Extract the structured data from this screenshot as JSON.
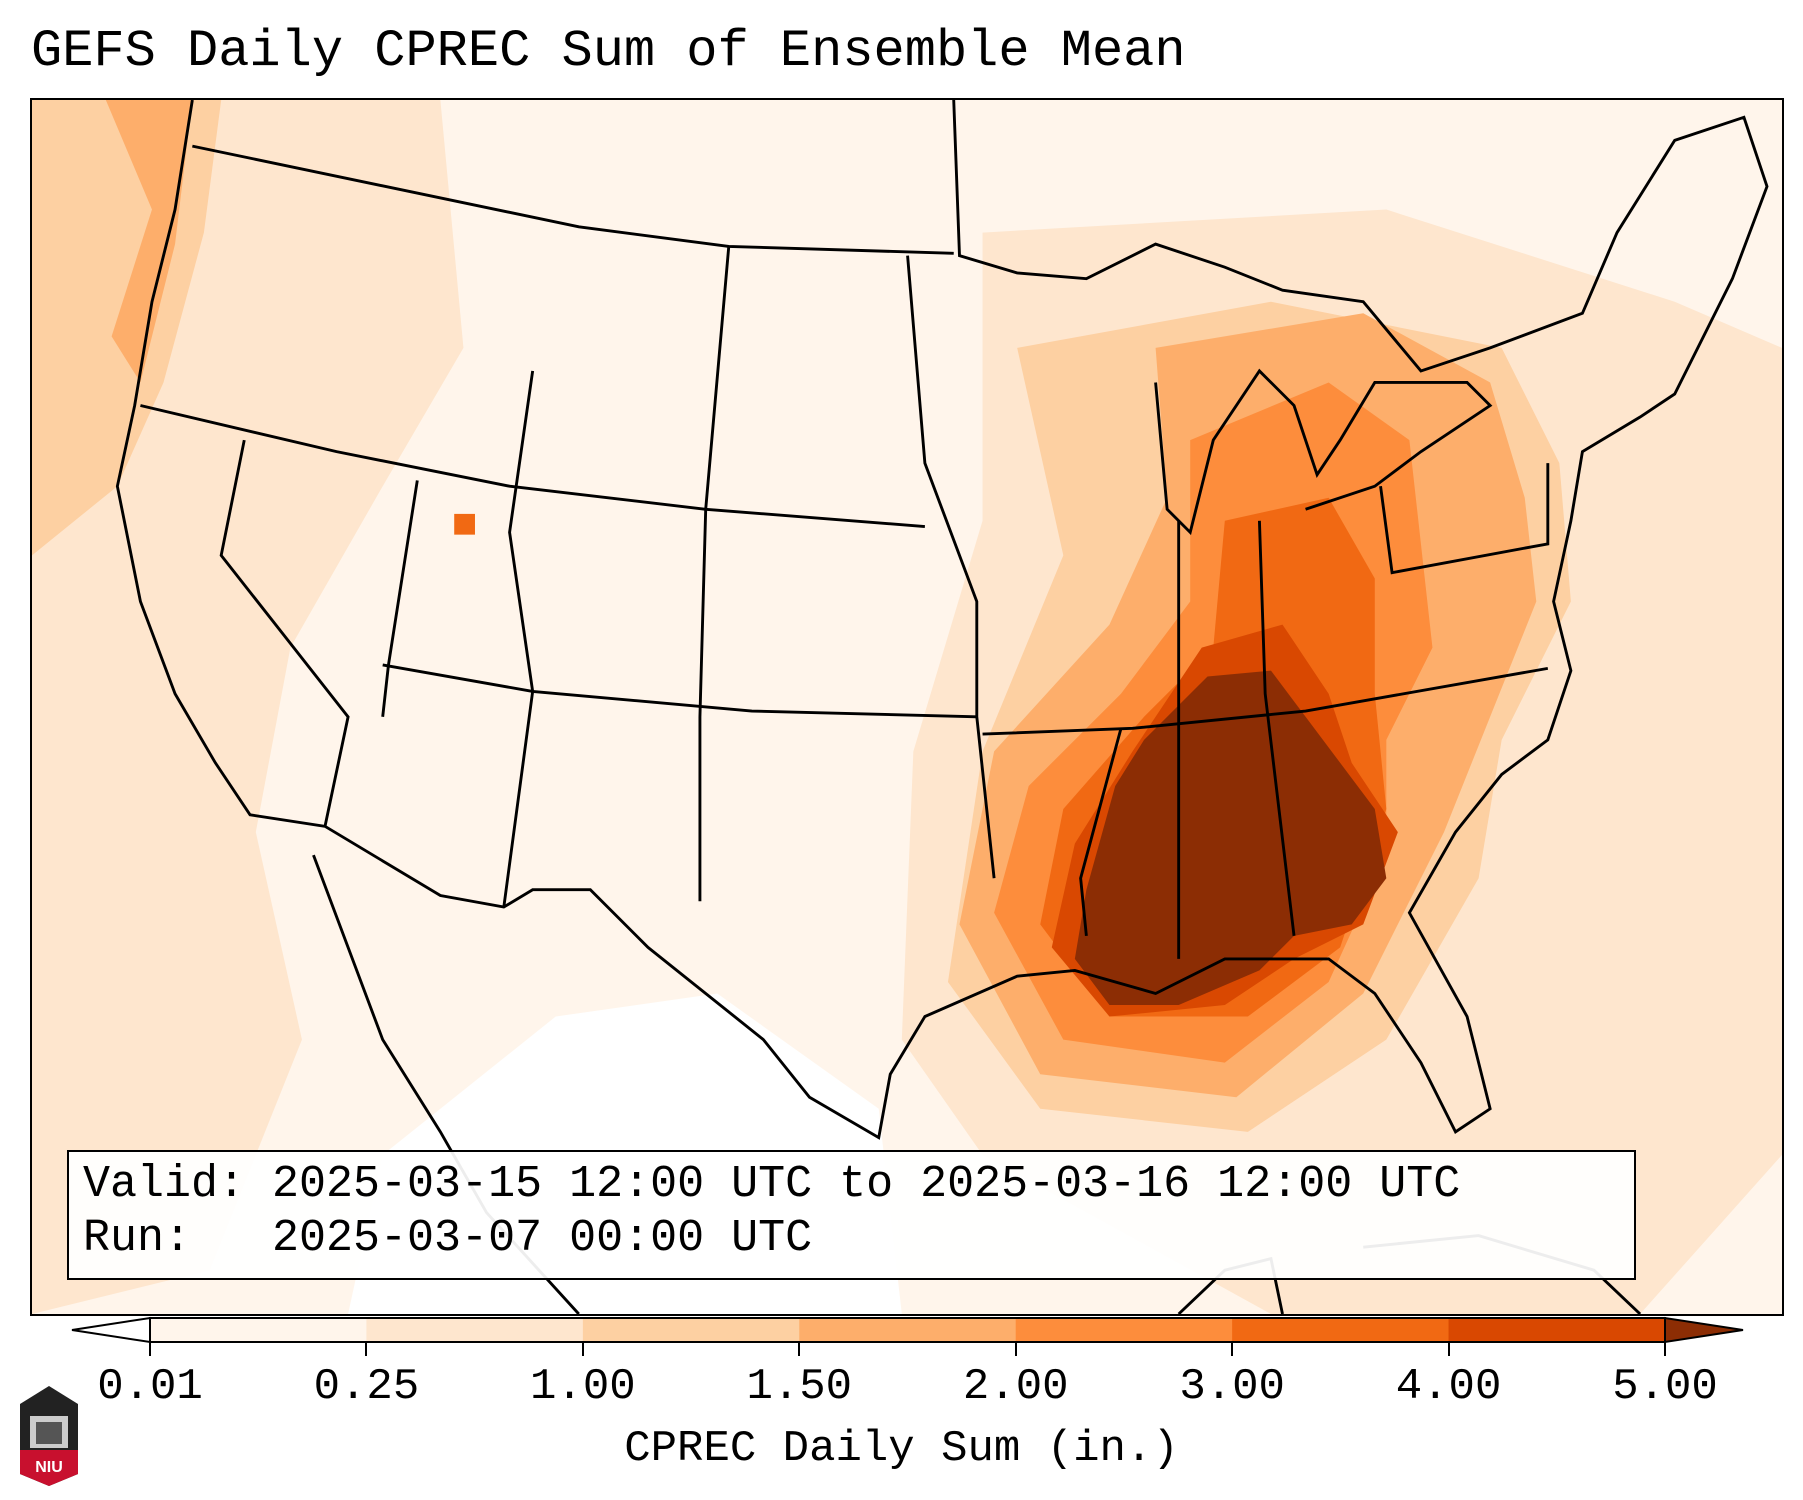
{
  "title": "GEFS Daily CPREC Sum of Ensemble Mean",
  "info": {
    "valid_line": "Valid: 2025-03-15 12:00 UTC to 2025-03-16 12:00 UTC",
    "run_line": "Run:   2025-03-07 00:00 UTC"
  },
  "colorbar": {
    "label": "CPREC Daily Sum (in.)",
    "ticks": [
      "0.01",
      "0.25",
      "1.00",
      "1.50",
      "2.00",
      "3.00",
      "4.00",
      "5.00"
    ],
    "under_color": "#ffffff",
    "colors": [
      "#fff5eb",
      "#fee6ce",
      "#fdd0a2",
      "#fdae6b",
      "#fd8d3c",
      "#f16913",
      "#d94801"
    ],
    "over_color": "#8c2d04"
  },
  "logo": {
    "text": "NIU"
  }
}
